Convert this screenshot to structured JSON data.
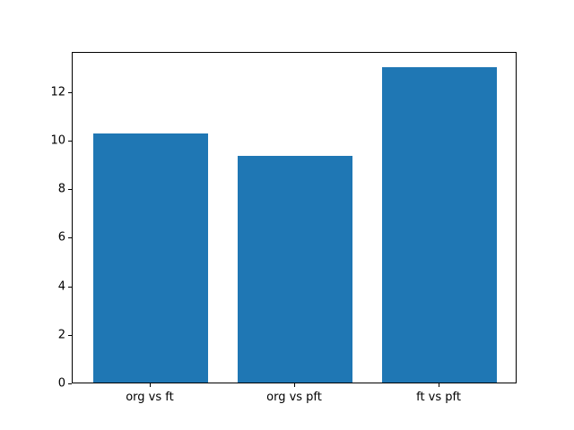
{
  "figure": {
    "background_color": "#ffffff",
    "axis_color": "#000000"
  },
  "chart_data": {
    "type": "bar",
    "categories": [
      "org vs ft",
      "org vs pft",
      "ft vs pft"
    ],
    "values": [
      10.24,
      9.34,
      13.0
    ],
    "title": "",
    "xlabel": "",
    "ylabel": "",
    "ylim": [
      0,
      13.65
    ],
    "yticks": [
      0,
      2,
      4,
      6,
      8,
      10,
      12
    ],
    "bar_color": "#1f77b4",
    "bar_width_fraction": 0.8,
    "grid": false,
    "legend": false
  }
}
